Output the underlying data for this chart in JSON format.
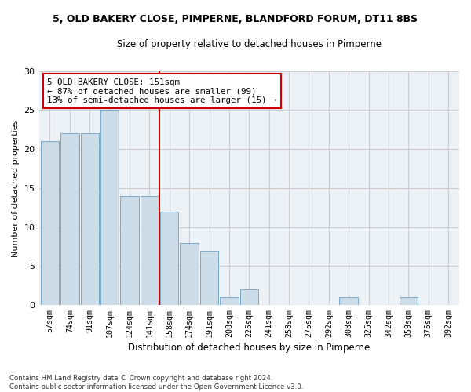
{
  "title1": "5, OLD BAKERY CLOSE, PIMPERNE, BLANDFORD FORUM, DT11 8BS",
  "title2": "Size of property relative to detached houses in Pimperne",
  "xlabel": "Distribution of detached houses by size in Pimperne",
  "ylabel": "Number of detached properties",
  "bins": [
    "57sqm",
    "74sqm",
    "91sqm",
    "107sqm",
    "124sqm",
    "141sqm",
    "158sqm",
    "174sqm",
    "191sqm",
    "208sqm",
    "225sqm",
    "241sqm",
    "258sqm",
    "275sqm",
    "292sqm",
    "308sqm",
    "325sqm",
    "342sqm",
    "359sqm",
    "375sqm",
    "392sqm"
  ],
  "values": [
    21,
    22,
    22,
    25,
    14,
    14,
    12,
    8,
    7,
    1,
    2,
    0,
    0,
    0,
    0,
    1,
    0,
    0,
    1,
    0,
    0
  ],
  "bar_color": "#ccdce8",
  "bar_edge_color": "#7aaac8",
  "vline_index": 6,
  "vline_color": "#cc0000",
  "annotation_text": "5 OLD BAKERY CLOSE: 151sqm\n← 87% of detached houses are smaller (99)\n13% of semi-detached houses are larger (15) →",
  "annotation_box_color": "#ffffff",
  "annotation_box_edge": "#cc0000",
  "ylim": [
    0,
    30
  ],
  "yticks": [
    0,
    5,
    10,
    15,
    20,
    25,
    30
  ],
  "footnote": "Contains HM Land Registry data © Crown copyright and database right 2024.\nContains public sector information licensed under the Open Government Licence v3.0.",
  "grid_color": "#cccccc",
  "background_color": "#edf2f7"
}
